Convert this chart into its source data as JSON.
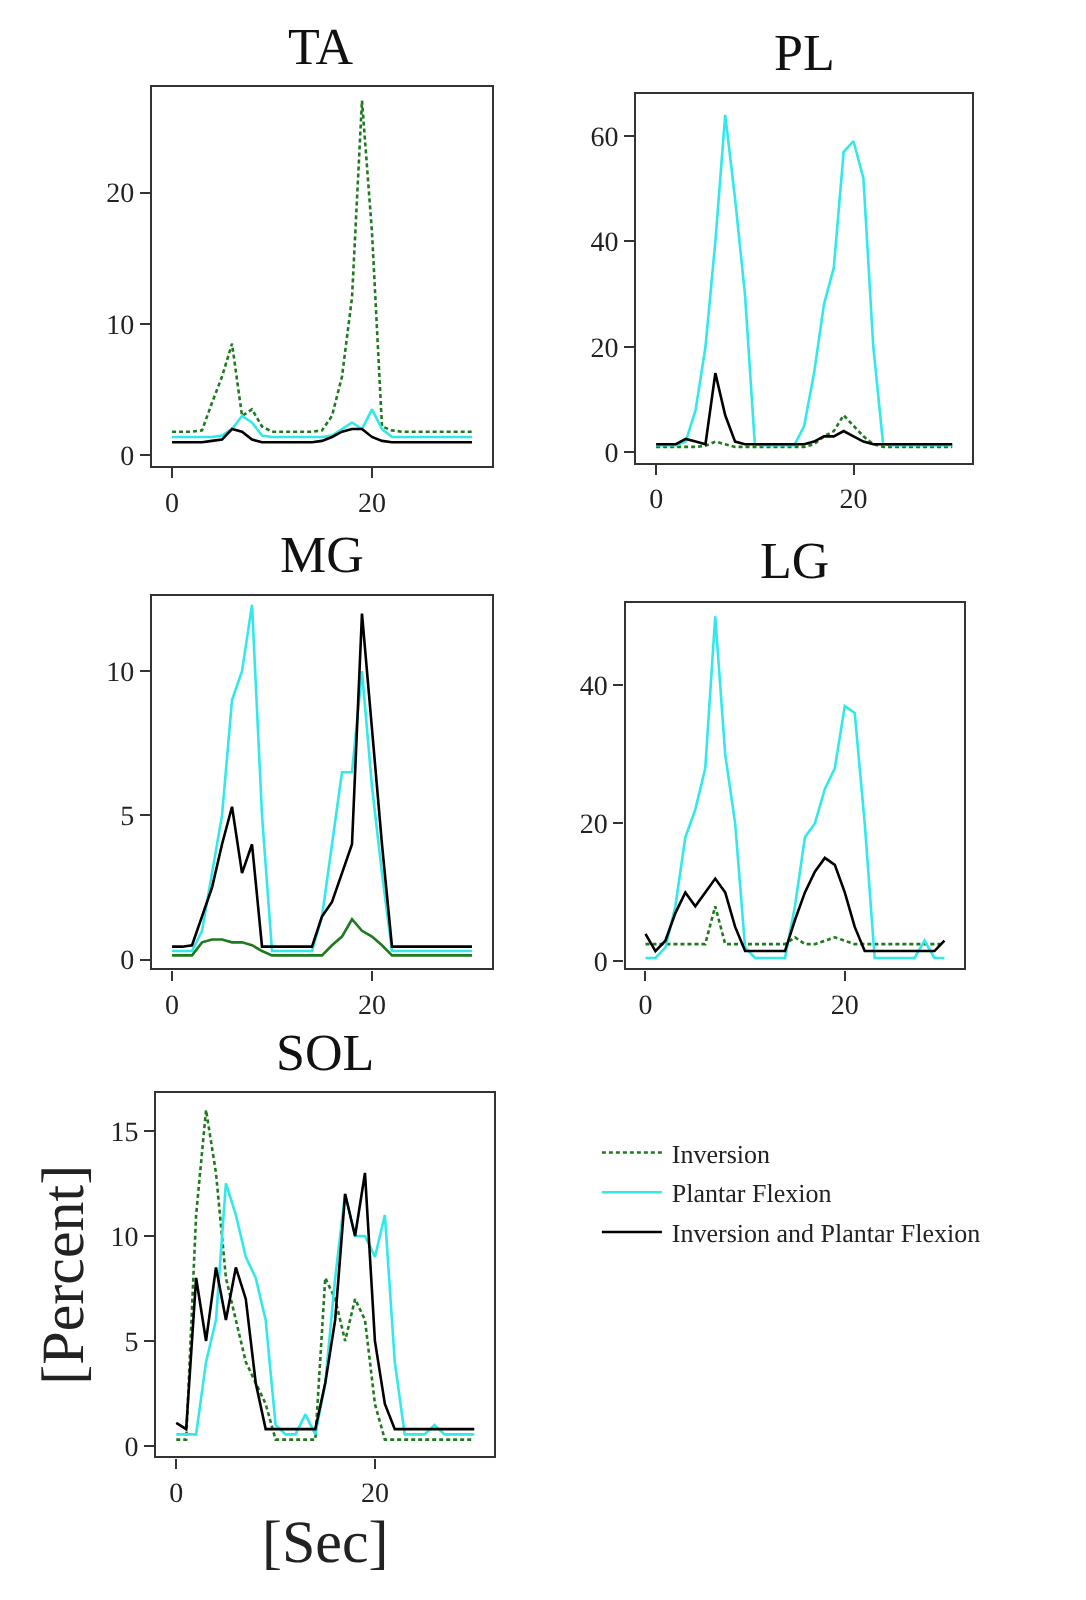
{
  "chart_data": [
    {
      "type": "line",
      "title": "TA",
      "legend": "right",
      "x": [
        0,
        1,
        2,
        3,
        4,
        5,
        6,
        7,
        8,
        9,
        10,
        11,
        12,
        13,
        14,
        15,
        16,
        17,
        18,
        19,
        20,
        21,
        22,
        23,
        24,
        25,
        26,
        27,
        28,
        29,
        30
      ],
      "xlim": [
        -2,
        32
      ],
      "xticks": [
        0,
        20
      ],
      "ylim": [
        -0.8,
        28
      ],
      "yticks": [
        0,
        10,
        20
      ],
      "series": [
        {
          "name": "Inversion",
          "color": "#1f7a1f",
          "line_style": "dotted",
          "values": [
            1.8,
            1.8,
            1.8,
            1.9,
            4,
            6,
            8.5,
            3,
            3.5,
            2.2,
            1.8,
            1.8,
            1.8,
            1.8,
            1.8,
            1.9,
            3,
            6,
            12,
            27,
            17,
            2.2,
            1.9,
            1.8,
            1.8,
            1.8,
            1.8,
            1.8,
            1.8,
            1.8,
            1.8
          ]
        },
        {
          "name": "Plantar Flexion",
          "color": "#33e8e8",
          "line_style": "solid",
          "values": [
            1.4,
            1.4,
            1.4,
            1.4,
            1.4,
            1.5,
            2,
            3,
            2.5,
            1.5,
            1.4,
            1.4,
            1.4,
            1.4,
            1.4,
            1.4,
            1.5,
            2,
            2.5,
            2,
            3.5,
            2,
            1.4,
            1.4,
            1.4,
            1.4,
            1.4,
            1.4,
            1.4,
            1.4,
            1.4
          ]
        },
        {
          "name": "Inversion and Plantar Flexion",
          "color": "#000000",
          "line_style": "solid",
          "values": [
            1,
            1,
            1,
            1,
            1.1,
            1.2,
            2,
            1.8,
            1.2,
            1,
            1,
            1,
            1,
            1,
            1,
            1.1,
            1.4,
            1.8,
            2,
            2,
            1.4,
            1.1,
            1,
            1,
            1,
            1,
            1,
            1,
            1,
            1,
            1
          ]
        }
      ]
    },
    {
      "type": "line",
      "title": "PL",
      "x": [
        0,
        1,
        2,
        3,
        4,
        5,
        6,
        7,
        8,
        9,
        10,
        11,
        12,
        13,
        14,
        15,
        16,
        17,
        18,
        19,
        20,
        21,
        22,
        23,
        24,
        25,
        26,
        27,
        28,
        29,
        30
      ],
      "xlim": [
        -2,
        32
      ],
      "xticks": [
        0,
        20
      ],
      "ylim": [
        -2,
        68
      ],
      "yticks": [
        0,
        20,
        40,
        60
      ],
      "series": [
        {
          "color": "#1f7a1f",
          "line_style": "dotted",
          "values": [
            1,
            1,
            1,
            1,
            1,
            1.2,
            2,
            1.5,
            1,
            1,
            1,
            1,
            1,
            1,
            1,
            1,
            1.5,
            3,
            4,
            7,
            5,
            3,
            1.5,
            1,
            1,
            1,
            1,
            1,
            1,
            1,
            1
          ]
        },
        {
          "color": "#33e8e8",
          "line_style": "solid",
          "values": [
            1.3,
            1.3,
            1.3,
            2,
            8,
            20,
            40,
            64,
            48,
            30,
            1.5,
            1.3,
            1.3,
            1.3,
            1.3,
            5,
            15,
            28,
            35,
            57,
            59,
            52,
            20,
            1.5,
            1.3,
            1.3,
            1.3,
            1.3,
            1.3,
            1.3,
            1.3
          ]
        },
        {
          "color": "#000000",
          "line_style": "solid",
          "values": [
            1.5,
            1.5,
            1.5,
            2.5,
            2,
            1.5,
            15,
            7,
            2,
            1.5,
            1.5,
            1.5,
            1.5,
            1.5,
            1.5,
            1.5,
            2,
            3,
            3,
            4,
            3,
            2,
            1.5,
            1.5,
            1.5,
            1.5,
            1.5,
            1.5,
            1.5,
            1.5,
            1.5
          ]
        }
      ]
    },
    {
      "type": "line",
      "title": "MG",
      "x": [
        0,
        1,
        2,
        3,
        4,
        5,
        6,
        7,
        8,
        9,
        10,
        11,
        12,
        13,
        14,
        15,
        16,
        17,
        18,
        19,
        20,
        21,
        22,
        23,
        24,
        25,
        26,
        27,
        28,
        29,
        30
      ],
      "xlim": [
        -2,
        32
      ],
      "xticks": [
        0,
        20
      ],
      "ylim": [
        -0.3,
        12.6
      ],
      "yticks": [
        0,
        5,
        10
      ],
      "series": [
        {
          "color": "#1f7a1f",
          "line_style": "solid",
          "values": [
            0.15,
            0.15,
            0.15,
            0.6,
            0.7,
            0.7,
            0.6,
            0.6,
            0.5,
            0.3,
            0.15,
            0.15,
            0.15,
            0.15,
            0.15,
            0.15,
            0.5,
            0.8,
            1.4,
            1,
            0.8,
            0.5,
            0.15,
            0.15,
            0.15,
            0.15,
            0.15,
            0.15,
            0.15,
            0.15,
            0.15
          ]
        },
        {
          "color": "#33e8e8",
          "line_style": "solid",
          "values": [
            0.3,
            0.3,
            0.3,
            1,
            3,
            5,
            9,
            10,
            12.3,
            5,
            0.3,
            0.3,
            0.3,
            0.3,
            0.3,
            1.5,
            4,
            6.5,
            6.5,
            10,
            6,
            3,
            0.3,
            0.3,
            0.3,
            0.3,
            0.3,
            0.3,
            0.3,
            0.3,
            0.3
          ]
        },
        {
          "color": "#000000",
          "line_style": "solid",
          "values": [
            0.45,
            0.45,
            0.5,
            1.5,
            2.5,
            4,
            5.3,
            3,
            4,
            0.45,
            0.45,
            0.45,
            0.45,
            0.45,
            0.45,
            1.5,
            2,
            3,
            4,
            12,
            8,
            4,
            0.45,
            0.45,
            0.45,
            0.45,
            0.45,
            0.45,
            0.45,
            0.45,
            0.45
          ]
        }
      ]
    },
    {
      "type": "line",
      "title": "LG",
      "x": [
        0,
        1,
        2,
        3,
        4,
        5,
        6,
        7,
        8,
        9,
        10,
        11,
        12,
        13,
        14,
        15,
        16,
        17,
        18,
        19,
        20,
        21,
        22,
        23,
        24,
        25,
        26,
        27,
        28,
        29,
        30
      ],
      "xlim": [
        -2,
        32
      ],
      "xticks": [
        0,
        20
      ],
      "ylim": [
        -1,
        52
      ],
      "yticks": [
        0,
        20,
        40
      ],
      "series": [
        {
          "color": "#1f7a1f",
          "line_style": "dotted",
          "values": [
            2.5,
            2.5,
            2.5,
            2.5,
            2.5,
            2.5,
            2.5,
            8,
            2.5,
            2.5,
            2.5,
            2.5,
            2.5,
            2.5,
            2.5,
            3.5,
            2.5,
            2.5,
            3,
            3.5,
            3,
            2.5,
            2.5,
            2.5,
            2.5,
            2.5,
            2.5,
            2.5,
            2.5,
            2.5,
            2.5
          ]
        },
        {
          "color": "#33e8e8",
          "line_style": "solid",
          "values": [
            0.5,
            0.5,
            2,
            8,
            18,
            22,
            28,
            50,
            30,
            20,
            2,
            0.5,
            0.5,
            0.5,
            0.5,
            8,
            18,
            20,
            25,
            28,
            37,
            36,
            20,
            0.5,
            0.5,
            0.5,
            0.5,
            0.5,
            3,
            0.5,
            0.5
          ]
        },
        {
          "color": "#000000",
          "line_style": "solid",
          "values": [
            4,
            1.5,
            3,
            7,
            10,
            8,
            10,
            12,
            10,
            5,
            1.5,
            1.5,
            1.5,
            1.5,
            1.5,
            6,
            10,
            13,
            15,
            14,
            10,
            5,
            1.5,
            1.5,
            1.5,
            1.5,
            1.5,
            1.5,
            1.5,
            1.5,
            3
          ]
        }
      ]
    },
    {
      "type": "line",
      "title": "SOL",
      "xlabel": "[Sec]",
      "ylabel": "[Percent]",
      "x": [
        0,
        1,
        2,
        3,
        4,
        5,
        6,
        7,
        8,
        9,
        10,
        11,
        12,
        13,
        14,
        15,
        16,
        17,
        18,
        19,
        20,
        21,
        22,
        23,
        24,
        25,
        26,
        27,
        28,
        29,
        30
      ],
      "xlim": [
        -2,
        32
      ],
      "xticks": [
        0,
        20
      ],
      "ylim": [
        -0.5,
        16.8
      ],
      "yticks": [
        0,
        5,
        10,
        15
      ],
      "series": [
        {
          "color": "#1f7a1f",
          "line_style": "dotted",
          "values": [
            0.3,
            0.3,
            11,
            16,
            13,
            8,
            6,
            4,
            3,
            2,
            0.3,
            0.3,
            0.3,
            0.3,
            0.3,
            8,
            7,
            5,
            7,
            6,
            2,
            0.3,
            0.3,
            0.3,
            0.3,
            0.3,
            0.3,
            0.3,
            0.3,
            0.3,
            0.3
          ]
        },
        {
          "color": "#33e8e8",
          "line_style": "solid",
          "values": [
            0.55,
            0.55,
            0.55,
            4,
            6,
            12.5,
            11,
            9,
            8,
            6,
            1,
            0.55,
            0.55,
            1.5,
            0.55,
            3,
            8,
            12,
            10,
            10,
            9,
            11,
            4,
            0.55,
            0.55,
            0.55,
            1,
            0.55,
            0.55,
            0.55,
            0.55
          ]
        },
        {
          "color": "#000000",
          "line_style": "solid",
          "values": [
            1.1,
            0.8,
            8,
            5,
            8.5,
            6,
            8.5,
            7,
            3,
            0.8,
            0.8,
            0.8,
            0.8,
            0.8,
            0.8,
            3,
            6,
            12,
            10,
            13,
            5,
            2,
            0.8,
            0.8,
            0.8,
            0.8,
            0.8,
            0.8,
            0.8,
            0.8,
            0.8
          ]
        }
      ]
    }
  ]
}
